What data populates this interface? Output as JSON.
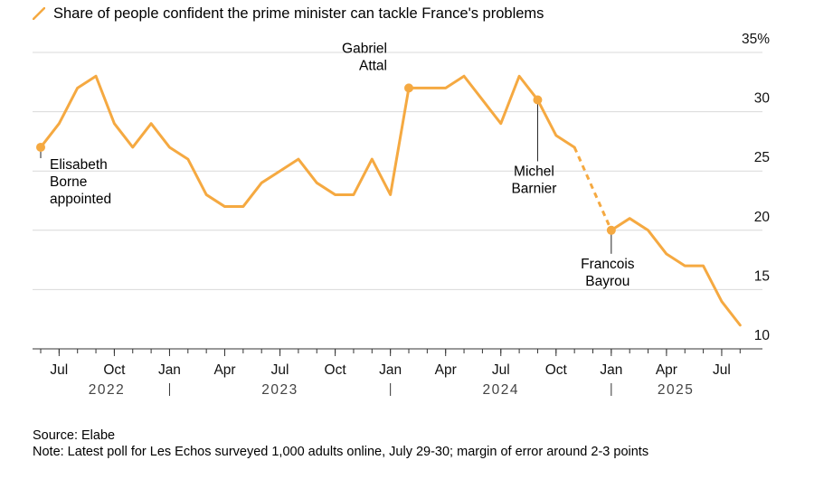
{
  "legend": {
    "label": "Share of people confident the prime minister can tackle France's problems"
  },
  "source": "Source: Elabe",
  "note": "Note: Latest poll for Les Echos surveyed 1,000 adults online, July 29-30; margin of error around 2-3 points",
  "colors": {
    "line": "#f5a941",
    "grid": "#d9d9d9",
    "axis": "#333333",
    "tick_text": "#111111",
    "year_text": "#444444"
  },
  "chart_data": {
    "type": "line",
    "title": "",
    "xlabel": "",
    "ylabel": "",
    "ylim": [
      10,
      35
    ],
    "y_ticks": [
      {
        "value": 35,
        "label": "35%"
      },
      {
        "value": 30,
        "label": "30"
      },
      {
        "value": 25,
        "label": "25"
      },
      {
        "value": 20,
        "label": "20"
      },
      {
        "value": 15,
        "label": "15"
      },
      {
        "value": 10,
        "label": "10"
      }
    ],
    "grid": true,
    "x_ticks": [
      {
        "date": "2022-07",
        "label": "Jul"
      },
      {
        "date": "2022-10",
        "label": "Oct"
      },
      {
        "date": "2023-01",
        "label": "Jan"
      },
      {
        "date": "2023-04",
        "label": "Apr"
      },
      {
        "date": "2023-07",
        "label": "Jul"
      },
      {
        "date": "2023-10",
        "label": "Oct"
      },
      {
        "date": "2024-01",
        "label": "Jan"
      },
      {
        "date": "2024-04",
        "label": "Apr"
      },
      {
        "date": "2024-07",
        "label": "Jul"
      },
      {
        "date": "2024-10",
        "label": "Oct"
      },
      {
        "date": "2025-01",
        "label": "Jan"
      },
      {
        "date": "2025-04",
        "label": "Apr"
      },
      {
        "date": "2025-07",
        "label": "Jul"
      }
    ],
    "year_labels": [
      {
        "label": "2022",
        "start": "2022-05",
        "end": "2023-01"
      },
      {
        "label": "2023",
        "start": "2023-01",
        "end": "2024-01"
      },
      {
        "label": "2024",
        "start": "2024-01",
        "end": "2025-01"
      },
      {
        "label": "2025",
        "start": "2025-01",
        "end": "2025-08"
      }
    ],
    "series": [
      {
        "dashed_between": [
          "2024-11",
          "2025-01"
        ],
        "points": [
          {
            "x": "2022-06",
            "y": 27
          },
          {
            "x": "2022-07",
            "y": 29
          },
          {
            "x": "2022-08",
            "y": 32
          },
          {
            "x": "2022-09",
            "y": 33
          },
          {
            "x": "2022-10",
            "y": 29
          },
          {
            "x": "2022-11",
            "y": 27
          },
          {
            "x": "2022-12",
            "y": 29
          },
          {
            "x": "2023-01",
            "y": 27
          },
          {
            "x": "2023-02",
            "y": 26
          },
          {
            "x": "2023-03",
            "y": 23
          },
          {
            "x": "2023-04",
            "y": 22
          },
          {
            "x": "2023-05",
            "y": 22
          },
          {
            "x": "2023-06",
            "y": 24
          },
          {
            "x": "2023-07",
            "y": 25
          },
          {
            "x": "2023-08",
            "y": 26
          },
          {
            "x": "2023-09",
            "y": 24
          },
          {
            "x": "2023-10",
            "y": 23
          },
          {
            "x": "2023-11",
            "y": 23
          },
          {
            "x": "2023-12",
            "y": 26
          },
          {
            "x": "2024-01",
            "y": 23
          },
          {
            "x": "2024-02",
            "y": 32
          },
          {
            "x": "2024-03",
            "y": 32
          },
          {
            "x": "2024-04",
            "y": 32
          },
          {
            "x": "2024-05",
            "y": 33
          },
          {
            "x": "2024-06",
            "y": 31
          },
          {
            "x": "2024-07",
            "y": 29
          },
          {
            "x": "2024-08",
            "y": 33
          },
          {
            "x": "2024-09",
            "y": 31
          },
          {
            "x": "2024-10",
            "y": 28
          },
          {
            "x": "2024-11",
            "y": 27
          },
          {
            "x": "2025-01",
            "y": 20
          },
          {
            "x": "2025-02",
            "y": 21
          },
          {
            "x": "2025-03",
            "y": 20
          },
          {
            "x": "2025-04",
            "y": 18
          },
          {
            "x": "2025-05",
            "y": 17
          },
          {
            "x": "2025-06",
            "y": 17
          },
          {
            "x": "2025-07",
            "y": 14
          },
          {
            "x": "2025-08",
            "y": 12
          }
        ]
      }
    ],
    "annotations": [
      {
        "lines": [
          "Elisabeth",
          "Borne",
          "appointed"
        ],
        "x": "2022-06",
        "y": 27,
        "position": "below-right"
      },
      {
        "lines": [
          "Gabriel",
          "Attal"
        ],
        "x": "2024-02",
        "y": 32,
        "position": "above-left"
      },
      {
        "lines": [
          "Michel",
          "Barnier"
        ],
        "x": "2024-09",
        "y": 31,
        "position": "below"
      },
      {
        "lines": [
          "Francois",
          "Bayrou"
        ],
        "x": "2025-01",
        "y": 20,
        "position": "below"
      }
    ]
  }
}
